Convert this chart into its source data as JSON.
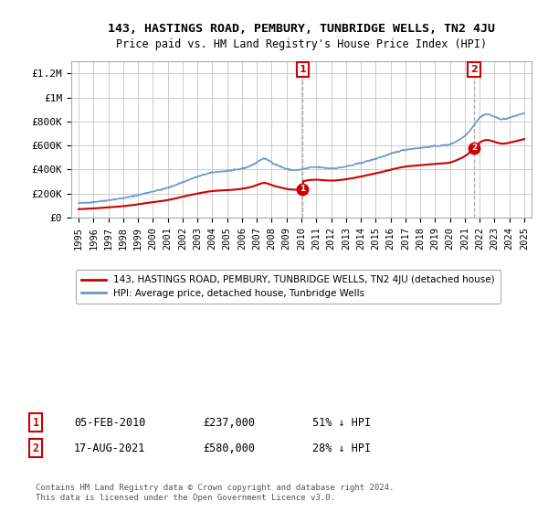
{
  "title": "143, HASTINGS ROAD, PEMBURY, TUNBRIDGE WELLS, TN2 4JU",
  "subtitle": "Price paid vs. HM Land Registry's House Price Index (HPI)",
  "ylabel_ticks": [
    "£0",
    "£200K",
    "£400K",
    "£600K",
    "£800K",
    "£1M",
    "£1.2M"
  ],
  "ytick_values": [
    0,
    200000,
    400000,
    600000,
    800000,
    1000000,
    1200000
  ],
  "ylim": [
    0,
    1300000
  ],
  "xlim_start": 1994.5,
  "xlim_end": 2025.5,
  "legend_label_red": "143, HASTINGS ROAD, PEMBURY, TUNBRIDGE WELLS, TN2 4JU (detached house)",
  "legend_label_blue": "HPI: Average price, detached house, Tunbridge Wells",
  "sale1_x": 2010.09,
  "sale1_y": 237000,
  "sale1_label": "1",
  "sale2_x": 2021.63,
  "sale2_y": 580000,
  "sale2_label": "2",
  "annotation1_date": "05-FEB-2010",
  "annotation1_price": "£237,000",
  "annotation1_hpi": "51% ↓ HPI",
  "annotation2_date": "17-AUG-2021",
  "annotation2_price": "£580,000",
  "annotation2_hpi": "28% ↓ HPI",
  "footer": "Contains HM Land Registry data © Crown copyright and database right 2024.\nThis data is licensed under the Open Government Licence v3.0.",
  "hpi_color": "#6699cc",
  "price_color": "#cc0000",
  "grid_color": "#cccccc",
  "background_color": "#ffffff"
}
